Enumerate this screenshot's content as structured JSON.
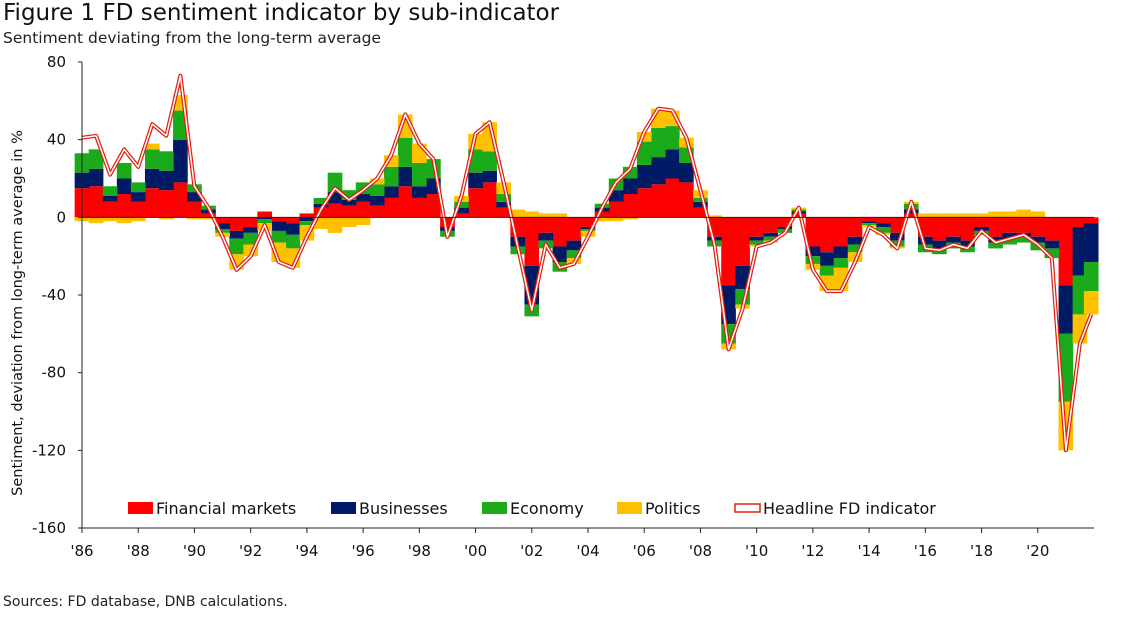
{
  "title": "Figure 1 FD sentiment indicator by sub-indicator",
  "subtitle": "Sentiment deviating from the long-term average",
  "source": "Sources: FD database, DNB calculations.",
  "colors": {
    "financial_markets": "#ff0000",
    "businesses": "#001a66",
    "economy": "#1aaa1a",
    "politics": "#ffc000",
    "headline_outer": "#e02010",
    "headline_inner": "#ffffff"
  },
  "chart_data": {
    "type": "area",
    "stacked": true,
    "title": "Figure 1 FD sentiment indicator by sub-indicator",
    "subtitle": "Sentiment deviating from the long-term average",
    "ylabel": "Sentiment, deviation from long-term average in %",
    "xlabel": "",
    "ylim": [
      -160,
      80
    ],
    "yticks": [
      80,
      40,
      0,
      -40,
      -80,
      -120,
      -160
    ],
    "xlim": [
      1986,
      2022
    ],
    "xticks": [
      1986,
      1988,
      1990,
      1992,
      1994,
      1996,
      1998,
      2000,
      2002,
      2004,
      2006,
      2008,
      2010,
      2012,
      2014,
      2016,
      2018,
      2020
    ],
    "xtick_labels": [
      "'86",
      "'88",
      "'90",
      "'92",
      "'94",
      "'96",
      "'98",
      "'00",
      "'02",
      "'04",
      "'06",
      "'08",
      "'10",
      "'12",
      "'14",
      "'16",
      "'18",
      "'20"
    ],
    "legend_position": "bottom",
    "grid": false,
    "x": [
      1986.0,
      1986.5,
      1987.0,
      1987.5,
      1988.0,
      1988.5,
      1989.0,
      1989.5,
      1990.0,
      1990.5,
      1991.0,
      1991.5,
      1992.0,
      1992.5,
      1993.0,
      1993.5,
      1994.0,
      1994.5,
      1995.0,
      1995.5,
      1996.0,
      1996.5,
      1997.0,
      1997.5,
      1998.0,
      1998.5,
      1999.0,
      1999.5,
      2000.0,
      2000.5,
      2001.0,
      2001.5,
      2002.0,
      2002.5,
      2003.0,
      2003.5,
      2004.0,
      2004.5,
      2005.0,
      2005.5,
      2006.0,
      2006.5,
      2007.0,
      2007.5,
      2008.0,
      2008.5,
      2009.0,
      2009.5,
      2010.0,
      2010.5,
      2011.0,
      2011.5,
      2012.0,
      2012.5,
      2013.0,
      2013.5,
      2014.0,
      2014.5,
      2015.0,
      2015.5,
      2016.0,
      2016.5,
      2017.0,
      2017.5,
      2018.0,
      2018.5,
      2019.0,
      2019.5,
      2020.0,
      2020.5,
      2021.0,
      2021.5,
      2021.9
    ],
    "series": [
      {
        "name": "Financial markets",
        "color": "#ff0000",
        "values": [
          15,
          16,
          8,
          12,
          8,
          15,
          14,
          18,
          8,
          2,
          -3,
          -7,
          -5,
          3,
          -2,
          -3,
          2,
          5,
          7,
          6,
          8,
          6,
          10,
          16,
          10,
          12,
          -5,
          2,
          15,
          18,
          5,
          -10,
          -25,
          -8,
          -15,
          -12,
          -5,
          3,
          8,
          12,
          15,
          17,
          20,
          18,
          5,
          -10,
          -35,
          -25,
          -10,
          -8,
          -5,
          2,
          -15,
          -18,
          -15,
          -10,
          -2,
          -3,
          -8,
          2,
          -10,
          -12,
          -10,
          -12,
          -5,
          -10,
          -8,
          -8,
          -10,
          -12,
          -35,
          -5,
          -3
        ]
      },
      {
        "name": "Businesses",
        "color": "#001a66",
        "values": [
          8,
          9,
          3,
          8,
          5,
          10,
          10,
          22,
          5,
          2,
          -3,
          -4,
          -3,
          -1,
          -5,
          -6,
          -2,
          2,
          6,
          3,
          4,
          5,
          6,
          10,
          6,
          8,
          -2,
          3,
          8,
          6,
          3,
          -5,
          -20,
          -4,
          -8,
          -5,
          -1,
          2,
          6,
          8,
          12,
          14,
          15,
          10,
          3,
          -2,
          -20,
          -12,
          -2,
          -2,
          -1,
          1,
          -5,
          -7,
          -6,
          -4,
          -1,
          -2,
          -4,
          2,
          -4,
          -4,
          -3,
          -3,
          -2,
          -3,
          -3,
          -2,
          -3,
          -4,
          -25,
          -25,
          -20
        ]
      },
      {
        "name": "Economy",
        "color": "#1aaa1a",
        "values": [
          10,
          10,
          5,
          8,
          5,
          10,
          10,
          15,
          4,
          2,
          -2,
          -8,
          -6,
          -2,
          -6,
          -7,
          -2,
          3,
          10,
          5,
          6,
          6,
          10,
          15,
          12,
          10,
          -3,
          3,
          12,
          10,
          4,
          -4,
          -6,
          -4,
          -5,
          -4,
          -1,
          2,
          6,
          6,
          12,
          15,
          12,
          8,
          2,
          -3,
          -10,
          -8,
          -2,
          -2,
          -2,
          1,
          -4,
          -5,
          -5,
          -4,
          -1,
          -3,
          -3,
          3,
          -4,
          -3,
          -3,
          -3,
          -2,
          -3,
          -3,
          -3,
          -4,
          -5,
          -35,
          -20,
          -15
        ]
      },
      {
        "name": "Politics",
        "color": "#ffc000",
        "values": [
          -2,
          -3,
          -2,
          -3,
          -2,
          3,
          -1,
          8,
          -1,
          -1,
          -2,
          -8,
          -6,
          -4,
          -10,
          -10,
          -8,
          -6,
          -8,
          -5,
          -4,
          3,
          6,
          12,
          10,
          0,
          0,
          3,
          8,
          15,
          6,
          4,
          3,
          2,
          2,
          -3,
          -3,
          -2,
          -2,
          -1,
          5,
          10,
          8,
          5,
          4,
          1,
          -3,
          -2,
          -1,
          -1,
          0,
          1,
          -3,
          -8,
          -12,
          -5,
          -1,
          -1,
          -1,
          1,
          2,
          2,
          2,
          2,
          2,
          3,
          3,
          4,
          3,
          0,
          -25,
          -15,
          -12
        ]
      },
      {
        "name": "Headline FD indicator",
        "color": "#e02010",
        "kind": "line",
        "values": [
          41,
          42,
          22,
          35,
          26,
          48,
          42,
          73,
          16,
          5,
          -10,
          -27,
          -20,
          -4,
          -23,
          -26,
          -10,
          4,
          15,
          9,
          14,
          20,
          32,
          53,
          38,
          30,
          -10,
          11,
          43,
          49,
          18,
          -15,
          -48,
          -14,
          -26,
          -24,
          -10,
          5,
          18,
          25,
          44,
          56,
          55,
          41,
          14,
          -14,
          -68,
          -47,
          -15,
          -13,
          -8,
          5,
          -27,
          -38,
          -38,
          -23,
          -5,
          -9,
          -16,
          8,
          -16,
          -17,
          -14,
          -16,
          -7,
          -13,
          -11,
          -9,
          -14,
          -21,
          -120,
          -65,
          -50
        ]
      }
    ]
  }
}
